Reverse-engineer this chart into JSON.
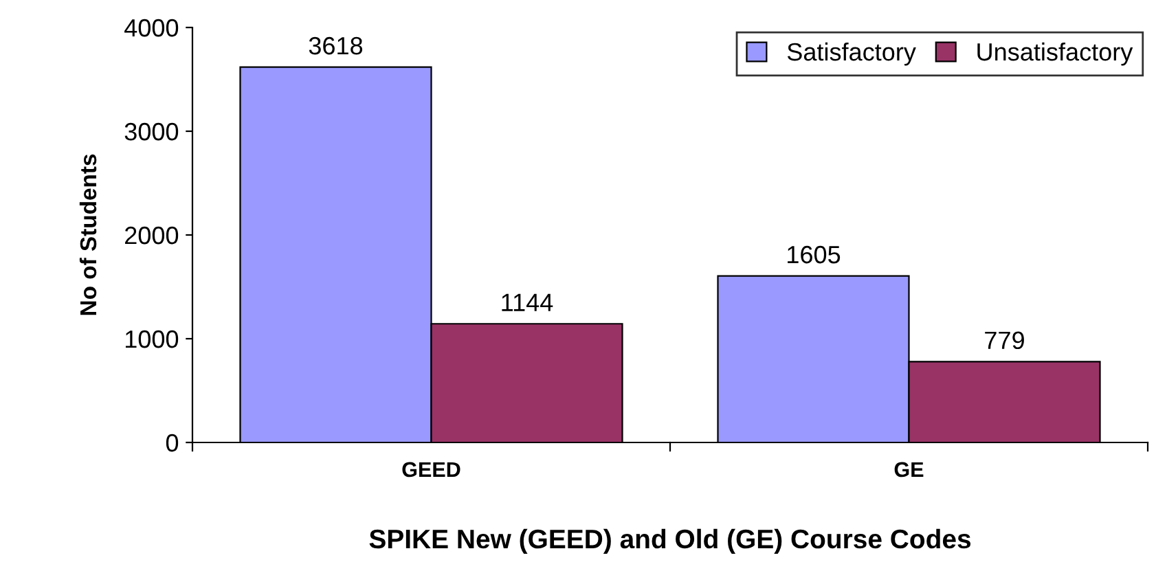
{
  "chart_data": {
    "type": "bar",
    "xlabel": "SPIKE New (GEED) and Old (GE) Course Codes",
    "ylabel": "No of Students",
    "categories": [
      "GEED",
      "GE"
    ],
    "series": [
      {
        "name": "Satisfactory",
        "color": "#9999ff",
        "values": [
          3618,
          1605
        ]
      },
      {
        "name": "Unsatisfactory",
        "color": "#993366",
        "values": [
          1144,
          779
        ]
      }
    ],
    "ylim": [
      0,
      4000
    ],
    "yticks": [
      0,
      1000,
      2000,
      3000,
      4000
    ],
    "grid": false,
    "legend": "top right",
    "data_labels": true
  }
}
